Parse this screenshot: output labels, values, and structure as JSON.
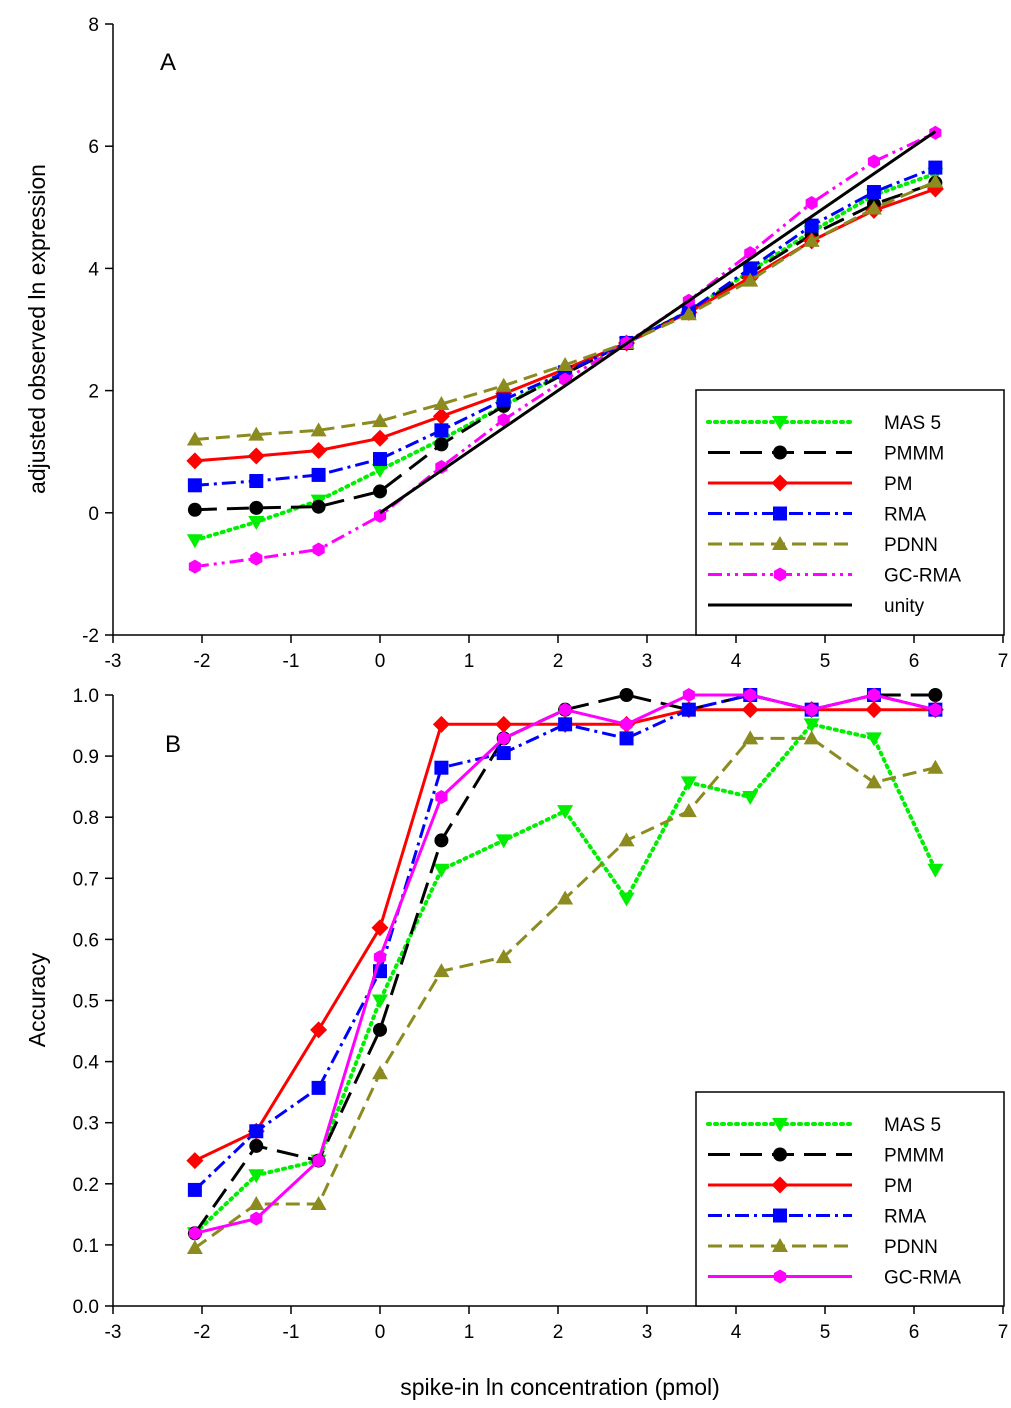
{
  "figure": {
    "xlabel": "spike-in ln concentration (pmol)"
  },
  "chart_data": [
    {
      "type": "line",
      "panel_label": "A",
      "xlabel": "",
      "ylabel": "adjusted observed ln expression",
      "xlim": [
        -3,
        7
      ],
      "ylim": [
        -2,
        8
      ],
      "x_ticks": [
        "-3",
        "-2",
        "-1",
        "0",
        "1",
        "2",
        "3",
        "4",
        "5",
        "6",
        "7"
      ],
      "y_ticks": [
        "-2",
        "0",
        "2",
        "4",
        "6",
        "8"
      ],
      "grid": false,
      "legend_position": "bottom-right",
      "x": [
        -2.08,
        -1.39,
        -0.69,
        0,
        0.69,
        1.39,
        2.08,
        2.77,
        3.47,
        4.16,
        4.85,
        5.55,
        6.24
      ],
      "series": [
        {
          "name": "MAS 5",
          "color": "#00ee00",
          "dash": "2,5",
          "marker": "triangle-down",
          "values": [
            -0.45,
            -0.15,
            0.2,
            0.7,
            1.2,
            1.75,
            2.3,
            2.78,
            3.3,
            3.95,
            4.6,
            5.2,
            5.55
          ]
        },
        {
          "name": "PMMM",
          "color": "#000000",
          "dash": "22,10",
          "marker": "circle",
          "values": [
            0.05,
            0.08,
            0.1,
            0.35,
            1.12,
            1.75,
            2.28,
            2.78,
            3.3,
            3.92,
            4.55,
            5.05,
            5.4
          ]
        },
        {
          "name": "PM",
          "color": "#ff0000",
          "dash": "",
          "marker": "diamond",
          "values": [
            0.85,
            0.93,
            1.02,
            1.22,
            1.58,
            1.95,
            2.35,
            2.78,
            3.28,
            3.85,
            4.45,
            4.95,
            5.3
          ]
        },
        {
          "name": "RMA",
          "color": "#0000ff",
          "dash": "14,5,3,5",
          "marker": "square",
          "values": [
            0.45,
            0.52,
            0.62,
            0.88,
            1.35,
            1.85,
            2.3,
            2.78,
            3.3,
            4.0,
            4.7,
            5.25,
            5.65
          ]
        },
        {
          "name": "PDNN",
          "color": "#8b8b20",
          "dash": "14,7",
          "marker": "triangle-up",
          "values": [
            1.2,
            1.28,
            1.35,
            1.5,
            1.78,
            2.08,
            2.42,
            2.78,
            3.25,
            3.8,
            4.45,
            4.98,
            5.42
          ]
        },
        {
          "name": "GC-RMA",
          "color": "#ff00ff",
          "dash": "14,5,3,5,3,5",
          "marker": "hexagon",
          "values": [
            -0.88,
            -0.75,
            -0.6,
            -0.05,
            0.75,
            1.52,
            2.18,
            2.78,
            3.47,
            4.25,
            5.07,
            5.75,
            6.22
          ]
        },
        {
          "name": "unity",
          "color": "#000000",
          "dash": "",
          "marker": "none",
          "x": [
            0,
            6.24
          ],
          "values": [
            0,
            6.24
          ]
        }
      ]
    },
    {
      "type": "line",
      "panel_label": "B",
      "xlabel": "spike-in ln concentration (pmol)",
      "ylabel": "Accuracy",
      "xlim": [
        -3,
        7
      ],
      "ylim": [
        0,
        1
      ],
      "x_ticks": [
        "-3",
        "-2",
        "-1",
        "0",
        "1",
        "2",
        "3",
        "4",
        "5",
        "6",
        "7"
      ],
      "y_ticks": [
        "0.0",
        "0.1",
        "0.2",
        "0.3",
        "0.4",
        "0.5",
        "0.6",
        "0.7",
        "0.8",
        "0.9",
        "1.0"
      ],
      "grid": false,
      "legend_position": "bottom-right",
      "x": [
        -2.08,
        -1.39,
        -0.69,
        0,
        0.69,
        1.39,
        2.08,
        2.77,
        3.47,
        4.16,
        4.85,
        5.55,
        6.24
      ],
      "series": [
        {
          "name": "MAS 5",
          "color": "#00ee00",
          "dash": "2,5",
          "marker": "triangle-down",
          "values": [
            0.119,
            0.214,
            0.238,
            0.5,
            0.714,
            0.762,
            0.81,
            0.667,
            0.857,
            0.833,
            0.952,
            0.929,
            0.714
          ]
        },
        {
          "name": "PMMM",
          "color": "#000000",
          "dash": "22,10",
          "marker": "circle",
          "values": [
            0.119,
            0.262,
            0.238,
            0.452,
            0.762,
            0.929,
            0.976,
            1.0,
            0.976,
            1.0,
            0.976,
            1.0,
            1.0
          ]
        },
        {
          "name": "PM",
          "color": "#ff0000",
          "dash": "",
          "marker": "diamond",
          "values": [
            0.238,
            0.286,
            0.452,
            0.619,
            0.952,
            0.952,
            0.952,
            0.952,
            0.976,
            0.976,
            0.976,
            0.976,
            0.976
          ]
        },
        {
          "name": "RMA",
          "color": "#0000ff",
          "dash": "14,5,3,5",
          "marker": "square",
          "values": [
            0.19,
            0.286,
            0.357,
            0.548,
            0.881,
            0.905,
            0.952,
            0.929,
            0.976,
            1.0,
            0.976,
            1.0,
            0.976
          ]
        },
        {
          "name": "PDNN",
          "color": "#8b8b20",
          "dash": "14,7",
          "marker": "triangle-up",
          "values": [
            0.095,
            0.167,
            0.167,
            0.381,
            0.548,
            0.571,
            0.667,
            0.762,
            0.81,
            0.929,
            0.929,
            0.857,
            0.881
          ]
        },
        {
          "name": "GC-RMA",
          "color": "#ff00ff",
          "dash": "",
          "marker": "hexagon",
          "values": [
            0.119,
            0.143,
            0.238,
            0.571,
            0.833,
            0.929,
            0.976,
            0.952,
            1.0,
            1.0,
            0.976,
            1.0,
            0.976
          ]
        }
      ]
    }
  ]
}
